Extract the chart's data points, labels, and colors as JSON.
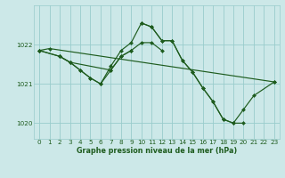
{
  "title": "Graphe pression niveau de la mer (hPa)",
  "background_color": "#cce8e8",
  "grid_color": "#99cccc",
  "line_color": "#1e5c1e",
  "marker_color": "#1e5c1e",
  "tick_color": "#1e5c1e",
  "ylim": [
    1019.6,
    1023.0
  ],
  "xlim": [
    -0.5,
    23.5
  ],
  "yticks": [
    1020,
    1021,
    1022
  ],
  "xticks": [
    0,
    1,
    2,
    3,
    4,
    5,
    6,
    7,
    8,
    9,
    10,
    11,
    12,
    13,
    14,
    15,
    16,
    17,
    18,
    19,
    20,
    21,
    22,
    23
  ],
  "series": [
    [
      0,
      1021.85,
      1,
      1021.9,
      23,
      1021.05
    ],
    [
      0,
      1021.85,
      2,
      1021.7,
      3,
      1021.55,
      4,
      1021.35,
      5,
      1021.15,
      6,
      1021.0,
      7,
      1021.45,
      8,
      1021.85,
      9,
      1022.05,
      10,
      1022.55,
      11,
      1022.45,
      12,
      1022.1,
      13,
      1022.1,
      14,
      1021.6,
      15,
      1021.3,
      16,
      1020.9,
      17,
      1020.55,
      18,
      1020.1,
      19,
      1020.0,
      20,
      1020.0
    ],
    [
      0,
      1021.85,
      2,
      1021.7,
      3,
      1021.55,
      4,
      1021.35,
      5,
      1021.15,
      6,
      1021.0,
      7,
      1021.35,
      8,
      1021.7,
      9,
      1021.85
    ],
    [
      2,
      1021.7,
      3,
      1021.55,
      7,
      1021.35,
      8,
      1021.7,
      9,
      1021.85,
      10,
      1022.05,
      11,
      1022.05,
      12,
      1021.85
    ],
    [
      10,
      1022.55,
      11,
      1022.45,
      12,
      1022.1,
      13,
      1022.1,
      14,
      1021.6,
      15,
      1021.3,
      16,
      1020.9,
      17,
      1020.55,
      18,
      1020.1,
      19,
      1020.0,
      20,
      1020.35,
      21,
      1020.7,
      23,
      1021.05
    ]
  ]
}
